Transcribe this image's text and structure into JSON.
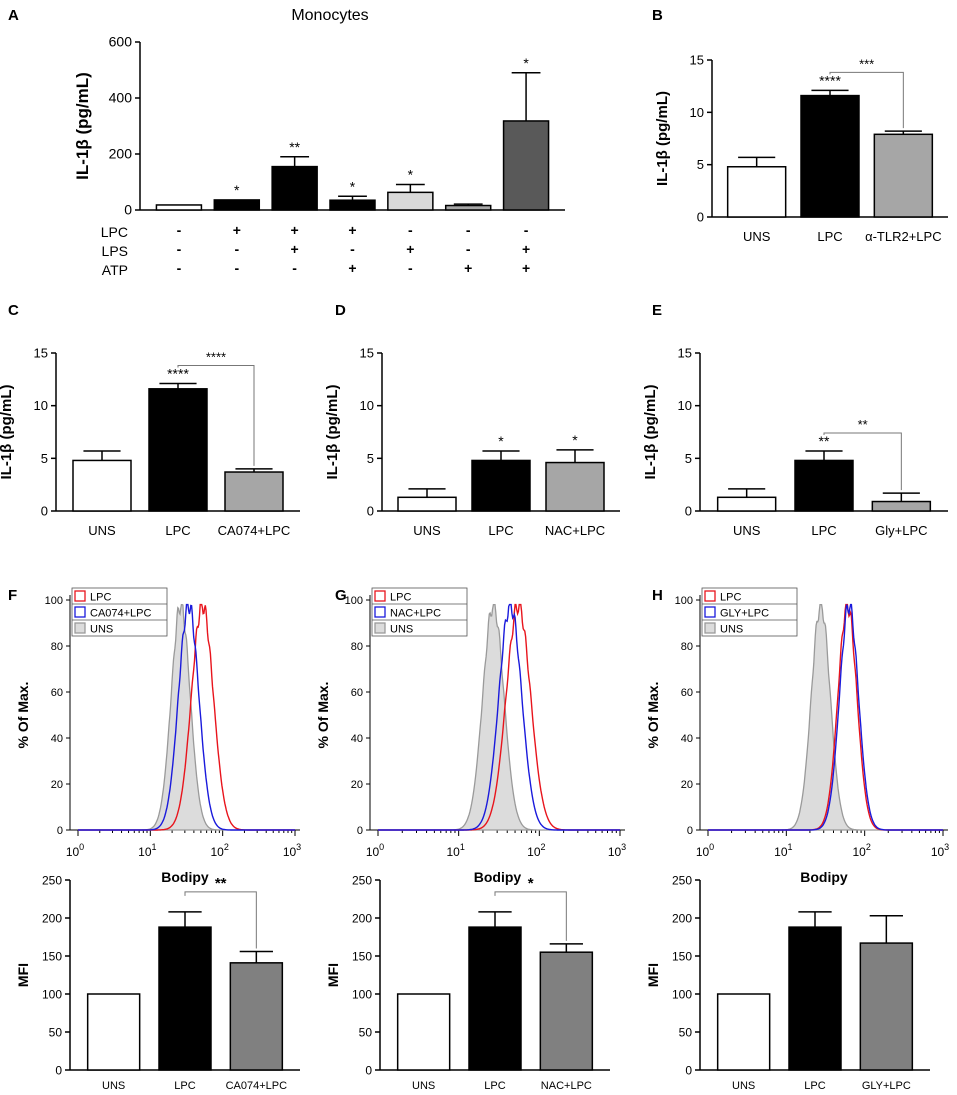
{
  "figure": {
    "panel_letters": [
      "A",
      "B",
      "C",
      "D",
      "E",
      "F",
      "G",
      "H"
    ]
  },
  "chart_data": [
    {
      "id": "A",
      "type": "bar",
      "title": "Monocytes",
      "ylabel": "IL-1β (pg/mL)",
      "ylim": [
        0,
        600
      ],
      "yticks": [
        "0",
        "200",
        "400",
        "600"
      ],
      "values": [
        18,
        36,
        155,
        35,
        63,
        16,
        318
      ],
      "errors": [
        0,
        0,
        35,
        14,
        28,
        5,
        172
      ],
      "fills": [
        "#ffffff",
        "#000000",
        "#000000",
        "#000000",
        "#d9d9d9",
        "#a6a6a6",
        "#595959"
      ],
      "sig": [
        "",
        "*",
        "**",
        "*",
        "*",
        "",
        "*"
      ],
      "treatments": {
        "rows": [
          "LPC",
          "LPS",
          "ATP"
        ],
        "signs": [
          [
            "-",
            "+",
            "+",
            "+",
            "-",
            "-",
            "-"
          ],
          [
            "-",
            "-",
            "+",
            "-",
            "+",
            "-",
            "+"
          ],
          [
            "-",
            "-",
            "-",
            "+",
            "-",
            "+",
            "+"
          ]
        ]
      }
    },
    {
      "id": "B",
      "type": "bar",
      "ylabel": "IL-1β (pg/mL)",
      "ylim": [
        0,
        15
      ],
      "yticks": [
        "0",
        "5",
        "10",
        "15"
      ],
      "categories": [
        "UNS",
        "LPC",
        "α-TLR2+LPC"
      ],
      "values": [
        4.8,
        11.6,
        7.9
      ],
      "errors": [
        0.9,
        0.5,
        0.3
      ],
      "fills": [
        "#ffffff",
        "#000000",
        "#a6a6a6"
      ],
      "sig": [
        "",
        "****",
        ""
      ],
      "bracket": {
        "from": 1,
        "to": 2,
        "label": "***"
      }
    },
    {
      "id": "C",
      "type": "bar",
      "ylabel": "IL-1β (pg/mL)",
      "ylim": [
        0,
        15
      ],
      "yticks": [
        "0",
        "5",
        "10",
        "15"
      ],
      "categories": [
        "UNS",
        "LPC",
        "CA074+LPC"
      ],
      "values": [
        4.8,
        11.6,
        3.7
      ],
      "errors": [
        0.9,
        0.5,
        0.3
      ],
      "fills": [
        "#ffffff",
        "#000000",
        "#a6a6a6"
      ],
      "sig": [
        "",
        "****",
        ""
      ],
      "bracket": {
        "from": 1,
        "to": 2,
        "label": "****"
      }
    },
    {
      "id": "D",
      "type": "bar",
      "ylabel": "IL-1β (pg/mL)",
      "ylim": [
        0,
        15
      ],
      "yticks": [
        "0",
        "5",
        "10",
        "15"
      ],
      "categories": [
        "UNS",
        "LPC",
        "NAC+LPC"
      ],
      "values": [
        1.3,
        4.8,
        4.6
      ],
      "errors": [
        0.8,
        0.9,
        1.2
      ],
      "fills": [
        "#ffffff",
        "#000000",
        "#a6a6a6"
      ],
      "sig": [
        "",
        "*",
        "*"
      ],
      "bracket": null
    },
    {
      "id": "E",
      "type": "bar",
      "ylabel": "IL-1β (pg/mL)",
      "ylim": [
        0,
        15
      ],
      "yticks": [
        "0",
        "5",
        "10",
        "15"
      ],
      "categories": [
        "UNS",
        "LPC",
        "Gly+LPC"
      ],
      "values": [
        1.3,
        4.8,
        0.9
      ],
      "errors": [
        0.8,
        0.9,
        0.8
      ],
      "fills": [
        "#ffffff",
        "#000000",
        "#a6a6a6"
      ],
      "sig": [
        "",
        "**",
        ""
      ],
      "bracket": {
        "from": 1,
        "to": 2,
        "label": "**"
      }
    },
    {
      "id": "F",
      "type": "line",
      "xscale": "log",
      "xlabel": "Bodipy",
      "ylabel": "% Of Max.",
      "ylim": [
        0,
        100
      ],
      "yticks": [
        "0",
        "20",
        "40",
        "60",
        "80",
        "100"
      ],
      "xticks": [
        {
          "base": "10",
          "exp": "0"
        },
        {
          "base": "10",
          "exp": "1"
        },
        {
          "base": "10",
          "exp": "2"
        },
        {
          "base": "10",
          "exp": "3"
        }
      ],
      "legend": [
        "LPC",
        "CA074+LPC",
        "UNS"
      ],
      "series": [
        {
          "name": "LPC",
          "color": "#e8141c",
          "peak_log": 1.72,
          "width": 0.15,
          "filled": false
        },
        {
          "name": "CA074+LPC",
          "color": "#1a1adc",
          "peak_log": 1.53,
          "width": 0.14,
          "filled": false
        },
        {
          "name": "UNS",
          "color": "#9a9a9a",
          "peak_log": 1.42,
          "width": 0.13,
          "filled": true
        }
      ]
    },
    {
      "id": "G",
      "type": "line",
      "xscale": "log",
      "xlabel": "Bodipy",
      "ylabel": "% Of Max.",
      "ylim": [
        0,
        100
      ],
      "yticks": [
        "0",
        "20",
        "40",
        "60",
        "80",
        "100"
      ],
      "xticks": [
        {
          "base": "10",
          "exp": "0"
        },
        {
          "base": "10",
          "exp": "1"
        },
        {
          "base": "10",
          "exp": "2"
        },
        {
          "base": "10",
          "exp": "3"
        }
      ],
      "legend": [
        "LPC",
        "NAC+LPC",
        "UNS"
      ],
      "series": [
        {
          "name": "LPC",
          "color": "#e8141c",
          "peak_log": 1.74,
          "width": 0.15,
          "filled": false
        },
        {
          "name": "NAC+LPC",
          "color": "#1a1adc",
          "peak_log": 1.64,
          "width": 0.14,
          "filled": false
        },
        {
          "name": "UNS",
          "color": "#9a9a9a",
          "peak_log": 1.43,
          "width": 0.13,
          "filled": true
        }
      ]
    },
    {
      "id": "H",
      "type": "line",
      "xscale": "log",
      "xlabel": "Bodipy",
      "ylabel": "% Of Max.",
      "ylim": [
        0,
        100
      ],
      "yticks": [
        "0",
        "20",
        "40",
        "60",
        "80",
        "100"
      ],
      "xticks": [
        {
          "base": "10",
          "exp": "0"
        },
        {
          "base": "10",
          "exp": "1"
        },
        {
          "base": "10",
          "exp": "2"
        },
        {
          "base": "10",
          "exp": "3"
        }
      ],
      "legend": [
        "LPC",
        "GLY+LPC",
        "UNS"
      ],
      "series": [
        {
          "name": "LPC",
          "color": "#e8141c",
          "peak_log": 1.78,
          "width": 0.12,
          "filled": false
        },
        {
          "name": "GLY+LPC",
          "color": "#1a1adc",
          "peak_log": 1.8,
          "width": 0.12,
          "filled": false
        },
        {
          "name": "UNS",
          "color": "#9a9a9a",
          "peak_log": 1.44,
          "width": 0.12,
          "filled": true
        }
      ]
    },
    {
      "id": "F-MFI",
      "type": "bar",
      "ylabel": "MFI",
      "ylim": [
        0,
        250
      ],
      "yticks": [
        "0",
        "50",
        "100",
        "150",
        "200",
        "250"
      ],
      "categories": [
        "UNS",
        "LPC",
        "CA074+LPC"
      ],
      "values": [
        100,
        188,
        141
      ],
      "errors": [
        0,
        20,
        15
      ],
      "fills": [
        "#ffffff",
        "#000000",
        "#808080"
      ],
      "sig": [
        "",
        "",
        ""
      ],
      "bracket": {
        "from": 1,
        "to": 2,
        "label": "**"
      }
    },
    {
      "id": "G-MFI",
      "type": "bar",
      "ylabel": "MFI",
      "ylim": [
        0,
        250
      ],
      "yticks": [
        "0",
        "50",
        "100",
        "150",
        "200",
        "250"
      ],
      "categories": [
        "UNS",
        "LPC",
        "NAC+LPC"
      ],
      "values": [
        100,
        188,
        155
      ],
      "errors": [
        0,
        20,
        11
      ],
      "fills": [
        "#ffffff",
        "#000000",
        "#808080"
      ],
      "sig": [
        "",
        "",
        ""
      ],
      "bracket": {
        "from": 1,
        "to": 2,
        "label": "*"
      }
    },
    {
      "id": "H-MFI",
      "type": "bar",
      "ylabel": "MFI",
      "ylim": [
        0,
        250
      ],
      "yticks": [
        "0",
        "50",
        "100",
        "150",
        "200",
        "250"
      ],
      "categories": [
        "UNS",
        "LPC",
        "GLY+LPC"
      ],
      "values": [
        100,
        188,
        167
      ],
      "errors": [
        0,
        20,
        36
      ],
      "fills": [
        "#ffffff",
        "#000000",
        "#808080"
      ],
      "sig": [
        "",
        "",
        ""
      ],
      "bracket": null
    }
  ]
}
